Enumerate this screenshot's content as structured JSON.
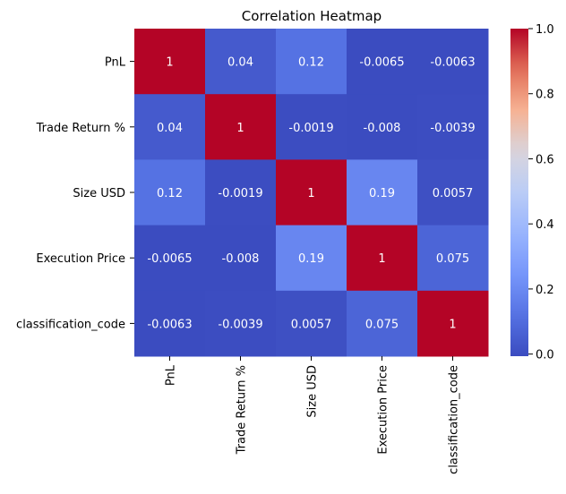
{
  "chart_data": {
    "type": "heatmap",
    "title": "Correlation Heatmap",
    "rows": [
      "PnL",
      "Trade Return %",
      "Size USD",
      "Execution Price",
      "classification_code"
    ],
    "columns": [
      "PnL",
      "Trade Return %",
      "Size USD",
      "Execution Price",
      "classification_code"
    ],
    "values": [
      [
        1,
        0.04,
        0.12,
        -0.0065,
        -0.0063
      ],
      [
        0.04,
        1,
        -0.0019,
        -0.008,
        -0.0039
      ],
      [
        0.12,
        -0.0019,
        1,
        0.19,
        0.0057
      ],
      [
        -0.0065,
        -0.008,
        0.19,
        1,
        0.075
      ],
      [
        -0.0063,
        -0.0039,
        0.0057,
        0.075,
        1
      ]
    ],
    "cell_labels": [
      [
        "1",
        "0.04",
        "0.12",
        "-0.0065",
        "-0.0063"
      ],
      [
        "0.04",
        "1",
        "-0.0019",
        "-0.008",
        "-0.0039"
      ],
      [
        "0.12",
        "-0.0019",
        "1",
        "0.19",
        "0.0057"
      ],
      [
        "-0.0065",
        "-0.008",
        "0.19",
        "1",
        "0.075"
      ],
      [
        "-0.0063",
        "-0.0039",
        "0.0057",
        "0.075",
        "1"
      ]
    ],
    "colormap": "coolwarm",
    "colorbar": {
      "range": [
        -0.0065,
        1
      ],
      "ticks": [
        0.0,
        0.2,
        0.4,
        0.6,
        0.8,
        1.0
      ],
      "tick_labels": [
        "0.0",
        "0.2",
        "0.4",
        "0.6",
        "0.8",
        "1.0"
      ]
    }
  }
}
